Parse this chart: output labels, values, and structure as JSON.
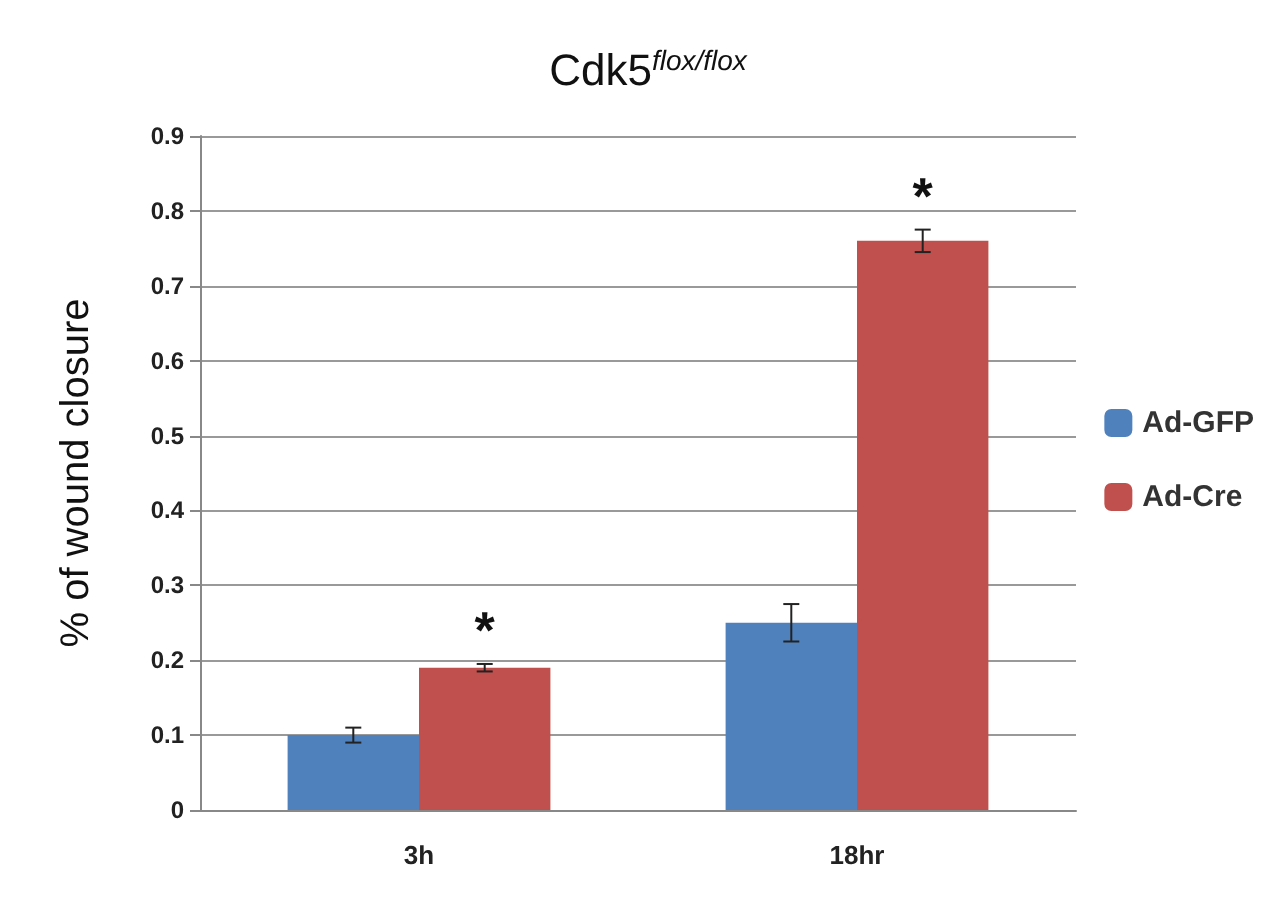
{
  "chart_data": {
    "type": "bar",
    "title": "Cdk5$^{flox/flox}$",
    "ylabel": "% of wound closure",
    "categories": [
      "3h",
      "18hr"
    ],
    "series": [
      {
        "name": "Ad-GFP",
        "color": "#4f81bd",
        "values": [
          0.1,
          0.25
        ],
        "errors": [
          0.01,
          0.025
        ]
      },
      {
        "name": "Ad-Cre",
        "color": "#c0504d",
        "values": [
          0.19,
          0.76
        ],
        "errors": [
          0.005,
          0.015
        ]
      }
    ],
    "ylim": [
      0,
      0.9
    ],
    "yticks": [
      0,
      0.1,
      0.2,
      0.3,
      0.4,
      0.5,
      0.6,
      0.7,
      0.8,
      0.9
    ],
    "grid": "y",
    "legend": "right",
    "annotations": [
      "*",
      "*"
    ]
  }
}
